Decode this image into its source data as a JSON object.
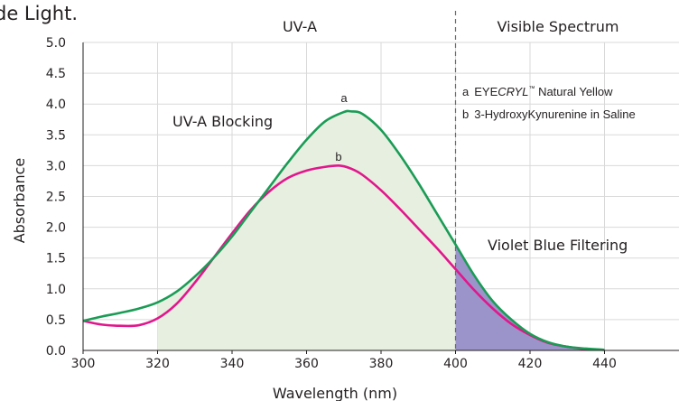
{
  "top_fragment": "de Light.",
  "chart_data": {
    "type": "area",
    "title": "",
    "xlabel": "Wavelength (nm)",
    "ylabel": "Absorbance",
    "xlim": [
      300,
      460
    ],
    "ylim": [
      0,
      5
    ],
    "x_ticks": [
      "300",
      "320",
      "340",
      "360",
      "380",
      "400",
      "420",
      "440"
    ],
    "y_ticks": [
      "0.0",
      "0.5",
      "1.0",
      "1.5",
      "2.0",
      "2.5",
      "3.0",
      "3.5",
      "4.0",
      "4.5",
      "5.0"
    ],
    "grid": true,
    "regions": {
      "uva_label": "UV-A",
      "visible_label": "Visible Spectrum",
      "divider_x": 400,
      "uva_blocking_label": "UV-A Blocking",
      "uva_blocking_from_x": 320,
      "violet_blue_label": "Violet Blue Filtering"
    },
    "legend": [
      {
        "marker": "a",
        "prefix": "EYE",
        "italic": "CRYL",
        "tm": "™",
        "suffix": " Natural Yellow"
      },
      {
        "marker": "b",
        "text": "3-HydroxyKynurenine in Saline"
      }
    ],
    "series": [
      {
        "marker": "a",
        "color": "#1a9c55",
        "x": [
          300,
          305,
          310,
          315,
          320,
          325,
          330,
          335,
          340,
          345,
          350,
          355,
          360,
          365,
          370,
          372,
          375,
          380,
          385,
          390,
          395,
          400,
          405,
          410,
          415,
          420,
          425,
          430,
          435,
          440
        ],
        "y": [
          0.48,
          0.55,
          0.61,
          0.68,
          0.78,
          0.95,
          1.2,
          1.5,
          1.85,
          2.25,
          2.65,
          3.05,
          3.42,
          3.72,
          3.87,
          3.88,
          3.84,
          3.58,
          3.18,
          2.72,
          2.22,
          1.72,
          1.22,
          0.8,
          0.5,
          0.27,
          0.13,
          0.06,
          0.03,
          0.01
        ]
      },
      {
        "marker": "b",
        "color": "#e2168c",
        "x": [
          300,
          305,
          310,
          315,
          320,
          325,
          330,
          335,
          340,
          345,
          350,
          355,
          360,
          365,
          369,
          372,
          375,
          380,
          385,
          390,
          395,
          400,
          405,
          410,
          415,
          420,
          425,
          430,
          435,
          440
        ],
        "y": [
          0.48,
          0.42,
          0.4,
          0.41,
          0.52,
          0.75,
          1.1,
          1.5,
          1.9,
          2.28,
          2.58,
          2.8,
          2.92,
          2.98,
          3.0,
          2.95,
          2.85,
          2.6,
          2.3,
          1.98,
          1.66,
          1.32,
          0.98,
          0.68,
          0.43,
          0.25,
          0.12,
          0.06,
          0.02,
          0.01
        ]
      }
    ],
    "colors": {
      "uva_fill": "#e7efe0",
      "violet_fill": "#9b94cb",
      "grid": "#d9d9d9",
      "divider": "#6a6a6a"
    }
  }
}
